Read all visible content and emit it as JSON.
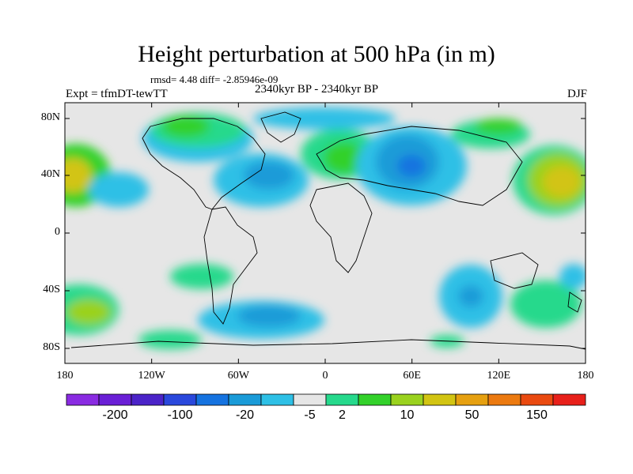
{
  "header": {
    "title": "Height perturbation at 500 hPa (in m)",
    "stats": "rmsd= 4.48 diff= -2.85946e-09",
    "experiment": "Expt = tfmDT-tewTT",
    "period": "2340kyr BP - 2340kyr BP",
    "season": "DJF"
  },
  "axes": {
    "x_ticks": [
      "180",
      "120W",
      "60W",
      "0",
      "60E",
      "120E",
      "180"
    ],
    "y_ticks": [
      "80N",
      "40N",
      "0",
      "40S",
      "80S"
    ]
  },
  "colorbar": {
    "labels": [
      "-200",
      "-100",
      "-20",
      "-5",
      "2",
      "10",
      "50",
      "150"
    ],
    "colors": [
      "#8a2be2",
      "#6a1fd6",
      "#4b23c8",
      "#2a48dc",
      "#1573e0",
      "#1a9bd8",
      "#2ec0e6",
      "#e6e6e6",
      "#26d98c",
      "#33d12a",
      "#9ad21e",
      "#d2c412",
      "#e6a010",
      "#ec7a10",
      "#ea4a10",
      "#e8201a"
    ]
  },
  "map": {
    "background_color": "#e6e6e6",
    "projection": "equirectangular"
  }
}
